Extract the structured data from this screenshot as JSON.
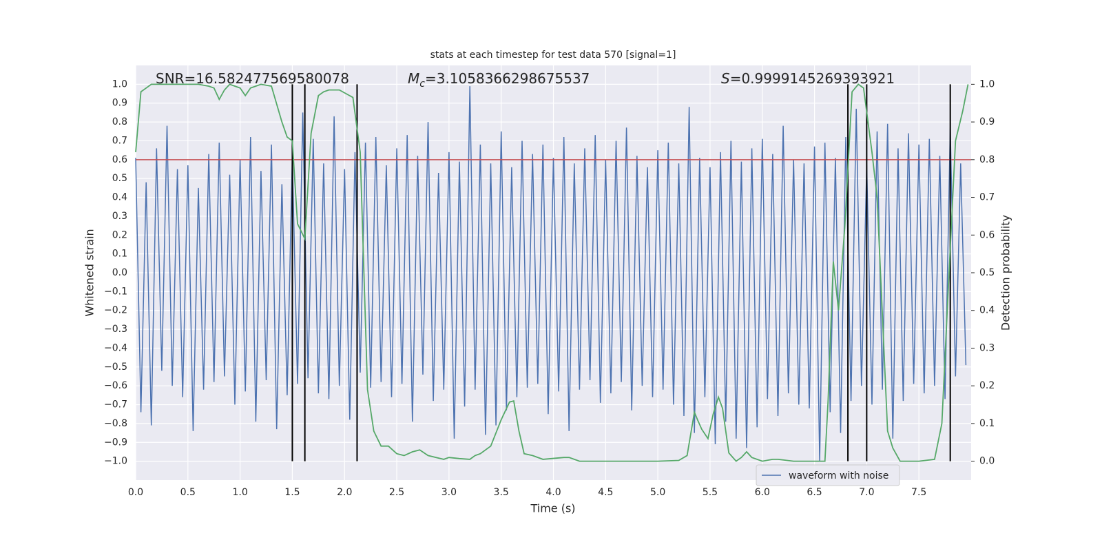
{
  "chart_data": {
    "type": "line",
    "title": "stats at each timestep for test data 570 [signal=1]",
    "xlabel": "Time (s)",
    "ylabel": "Whitened strain",
    "y2label": "Detection probability",
    "annotations": [
      {
        "parts": [
          "SNR=16.582477569580078"
        ]
      },
      {
        "parts": [
          "M",
          "c",
          "=3.1058366298675537"
        ]
      },
      {
        "parts": [
          "S",
          "=0.9999145269393921"
        ]
      }
    ],
    "xlim": [
      0,
      8
    ],
    "ylim": [
      -1.1,
      1.1
    ],
    "y2lim": [
      -0.05,
      1.05
    ],
    "xticks": [
      {
        "value": 0,
        "label": "0.0"
      },
      0.5,
      {
        "value": 1,
        "label": "1.0"
      },
      1.5,
      {
        "value": 2,
        "label": "2.0"
      },
      2.5,
      {
        "value": 3,
        "label": "3.0"
      },
      3.5,
      {
        "value": 4,
        "label": "4.0"
      },
      4.5,
      {
        "value": 5,
        "label": "5.0"
      },
      5.5,
      {
        "value": 6,
        "label": "6.0"
      },
      6.5,
      {
        "value": 7,
        "label": "7.0"
      },
      7.5
    ],
    "yticks": [
      {
        "value": -1,
        "label": "−1.0"
      },
      {
        "value": -0.9,
        "label": "−0.9"
      },
      {
        "value": -0.8,
        "label": "−0.8"
      },
      {
        "value": -0.7,
        "label": "−0.7"
      },
      {
        "value": -0.6,
        "label": "−0.6"
      },
      {
        "value": -0.5,
        "label": "−0.5"
      },
      {
        "value": -0.4,
        "label": "−0.4"
      },
      {
        "value": -0.3,
        "label": "−0.3"
      },
      {
        "value": -0.2,
        "label": "−0.2"
      },
      {
        "value": -0.1,
        "label": "−0.1"
      },
      {
        "value": 0,
        "label": "0.0"
      },
      0.1,
      0.2,
      0.3,
      0.4,
      0.5,
      0.6,
      0.7,
      0.8,
      0.9,
      {
        "value": 1,
        "label": "1.0"
      }
    ],
    "y2ticks": [
      {
        "value": 0,
        "label": "0.0"
      },
      0.1,
      0.2,
      0.3,
      0.4,
      0.5,
      0.6,
      0.7,
      0.8,
      0.9,
      {
        "value": 1,
        "label": "1.0"
      }
    ],
    "grid": true,
    "legend": "lower right",
    "series": [
      {
        "name": "waveform with noise",
        "color": "#4c72b0",
        "x": [
          0,
          0.05,
          0.1,
          0.15,
          0.2,
          0.25,
          0.3,
          0.35,
          0.4,
          0.45,
          0.5,
          0.55,
          0.6,
          0.65,
          0.7,
          0.75,
          0.8,
          0.85,
          0.9,
          0.95,
          1,
          1.05,
          1.1,
          1.15,
          1.2,
          1.25,
          1.3,
          1.35,
          1.4,
          1.45,
          1.5,
          1.55,
          1.6,
          1.65,
          1.7,
          1.75,
          1.8,
          1.85,
          1.9,
          1.95,
          2,
          2.05,
          2.1,
          2.15,
          2.2,
          2.25,
          2.3,
          2.35,
          2.4,
          2.45,
          2.5,
          2.55,
          2.6,
          2.65,
          2.7,
          2.75,
          2.8,
          2.85,
          2.9,
          2.95,
          3,
          3.05,
          3.1,
          3.15,
          3.2,
          3.25,
          3.3,
          3.35,
          3.4,
          3.45,
          3.5,
          3.55,
          3.6,
          3.65,
          3.7,
          3.75,
          3.8,
          3.85,
          3.9,
          3.95,
          4,
          4.05,
          4.1,
          4.15,
          4.2,
          4.25,
          4.3,
          4.35,
          4.4,
          4.45,
          4.5,
          4.55,
          4.6,
          4.65,
          4.7,
          4.75,
          4.8,
          4.85,
          4.9,
          4.95,
          5,
          5.05,
          5.1,
          5.15,
          5.2,
          5.25,
          5.3,
          5.35,
          5.4,
          5.45,
          5.5,
          5.55,
          5.6,
          5.65,
          5.7,
          5.75,
          5.8,
          5.85,
          5.9,
          5.95,
          6,
          6.05,
          6.1,
          6.15,
          6.2,
          6.25,
          6.3,
          6.35,
          6.4,
          6.45,
          6.5,
          6.55,
          6.6,
          6.65,
          6.7,
          6.75,
          6.8,
          6.85,
          6.9,
          6.95,
          7,
          7.05,
          7.1,
          7.15,
          7.2,
          7.25,
          7.3,
          7.35,
          7.4,
          7.45,
          7.5,
          7.55,
          7.6,
          7.65,
          7.7,
          7.75,
          7.8,
          7.85,
          7.9,
          7.95
        ],
        "values": [
          0.61,
          -0.74,
          0.48,
          -0.81,
          0.66,
          -0.52,
          0.78,
          -0.6,
          0.55,
          -0.66,
          0.57,
          -0.84,
          0.45,
          -0.62,
          0.63,
          -0.58,
          0.69,
          -0.55,
          0.52,
          -0.7,
          0.6,
          -0.63,
          0.72,
          -0.79,
          0.54,
          -0.57,
          0.68,
          -0.83,
          0.47,
          -0.65,
          0.62,
          -0.59,
          0.85,
          -0.56,
          0.71,
          -0.64,
          0.58,
          -0.67,
          0.83,
          -0.6,
          0.55,
          -0.78,
          0.64,
          -0.53,
          0.69,
          -0.61,
          0.72,
          -0.58,
          0.57,
          -0.66,
          0.66,
          -0.59,
          0.73,
          -0.79,
          0.62,
          -0.54,
          0.8,
          -0.68,
          0.53,
          -0.62,
          0.64,
          -0.88,
          0.59,
          -0.71,
          0.99,
          -0.62,
          0.68,
          -0.86,
          0.58,
          -0.81,
          0.75,
          -0.73,
          0.56,
          -0.66,
          0.7,
          -0.61,
          0.63,
          -0.59,
          0.68,
          -0.75,
          0.61,
          -0.63,
          0.72,
          -0.84,
          0.58,
          -0.62,
          0.66,
          -0.57,
          0.73,
          -0.69,
          0.6,
          -0.64,
          0.7,
          -0.58,
          0.77,
          -0.73,
          0.62,
          -0.6,
          0.56,
          -0.66,
          0.65,
          -0.62,
          0.69,
          -0.7,
          0.58,
          -0.76,
          0.88,
          -0.85,
          0.61,
          -0.66,
          0.56,
          -0.91,
          0.64,
          -0.79,
          0.7,
          -0.88,
          0.59,
          -0.93,
          0.66,
          -0.82,
          0.71,
          -0.67,
          0.63,
          -0.76,
          0.78,
          -0.64,
          0.6,
          -0.7,
          0.58,
          -0.72,
          0.67,
          -1.0,
          0.69,
          -0.74,
          0.61,
          -0.85,
          0.72,
          -0.68,
          0.87,
          -0.6,
          0.57,
          -0.7,
          0.75,
          -0.62,
          0.79,
          -0.88,
          0.66,
          -0.68,
          0.74,
          -0.59,
          0.68,
          -0.64,
          0.71,
          -0.6,
          0.62,
          -0.67,
          0.77,
          -0.55,
          0.58,
          -0.49
        ]
      }
    ],
    "probability": {
      "color": "#55a868",
      "axis": "y2",
      "x": [
        0,
        0.05,
        0.1,
        0.15,
        0.5,
        0.6,
        0.7,
        0.75,
        0.8,
        0.85,
        0.9,
        1.0,
        1.05,
        1.1,
        1.2,
        1.3,
        1.4,
        1.45,
        1.5,
        1.55,
        1.62,
        1.68,
        1.75,
        1.8,
        1.85,
        1.95,
        2.08,
        2.15,
        2.22,
        2.28,
        2.35,
        2.42,
        2.5,
        2.57,
        2.65,
        2.72,
        2.8,
        2.95,
        3.0,
        3.1,
        3.2,
        3.25,
        3.3,
        3.4,
        3.45,
        3.5,
        3.58,
        3.62,
        3.67,
        3.72,
        3.8,
        3.9,
        4.1,
        4.15,
        4.25,
        4.5,
        5.0,
        5.2,
        5.28,
        5.35,
        5.38,
        5.42,
        5.48,
        5.53,
        5.58,
        5.62,
        5.68,
        5.75,
        5.8,
        5.85,
        5.9,
        6.0,
        6.1,
        6.15,
        6.3,
        6.6,
        6.63,
        6.68,
        6.73,
        6.79,
        6.86,
        6.92,
        6.97,
        7.05,
        7.1,
        7.2,
        7.25,
        7.32,
        7.5,
        7.65,
        7.72,
        7.78,
        7.85,
        7.92,
        7.97
      ],
      "values": [
        0.82,
        0.98,
        0.99,
        1.0,
        1.0,
        1.0,
        0.995,
        0.99,
        0.96,
        0.985,
        1.0,
        0.99,
        0.97,
        0.99,
        1.0,
        0.995,
        0.9,
        0.86,
        0.85,
        0.63,
        0.59,
        0.87,
        0.97,
        0.98,
        0.985,
        0.985,
        0.965,
        0.82,
        0.19,
        0.08,
        0.04,
        0.04,
        0.02,
        0.015,
        0.025,
        0.03,
        0.015,
        0.005,
        0.01,
        0.007,
        0.005,
        0.015,
        0.02,
        0.04,
        0.075,
        0.11,
        0.157,
        0.16,
        0.08,
        0.02,
        0.015,
        0.005,
        0.01,
        0.01,
        0.0,
        0.0,
        0.0,
        0.002,
        0.015,
        0.13,
        0.11,
        0.085,
        0.06,
        0.125,
        0.17,
        0.14,
        0.022,
        0.0,
        0.01,
        0.025,
        0.01,
        0.0,
        0.005,
        0.005,
        0.0,
        0.0,
        0.16,
        0.53,
        0.4,
        0.62,
        0.98,
        1.0,
        0.99,
        0.82,
        0.7,
        0.08,
        0.035,
        0.0,
        0.0,
        0.005,
        0.1,
        0.45,
        0.85,
        0.93,
        1.0
      ]
    },
    "threshold": {
      "value": 0.6,
      "color": "#c44e52"
    },
    "vlines": {
      "x": [
        1.5,
        1.62,
        2.12,
        6.82,
        7.0,
        7.8
      ],
      "ymin": -1,
      "ymax": 1,
      "color": "#000000"
    }
  }
}
